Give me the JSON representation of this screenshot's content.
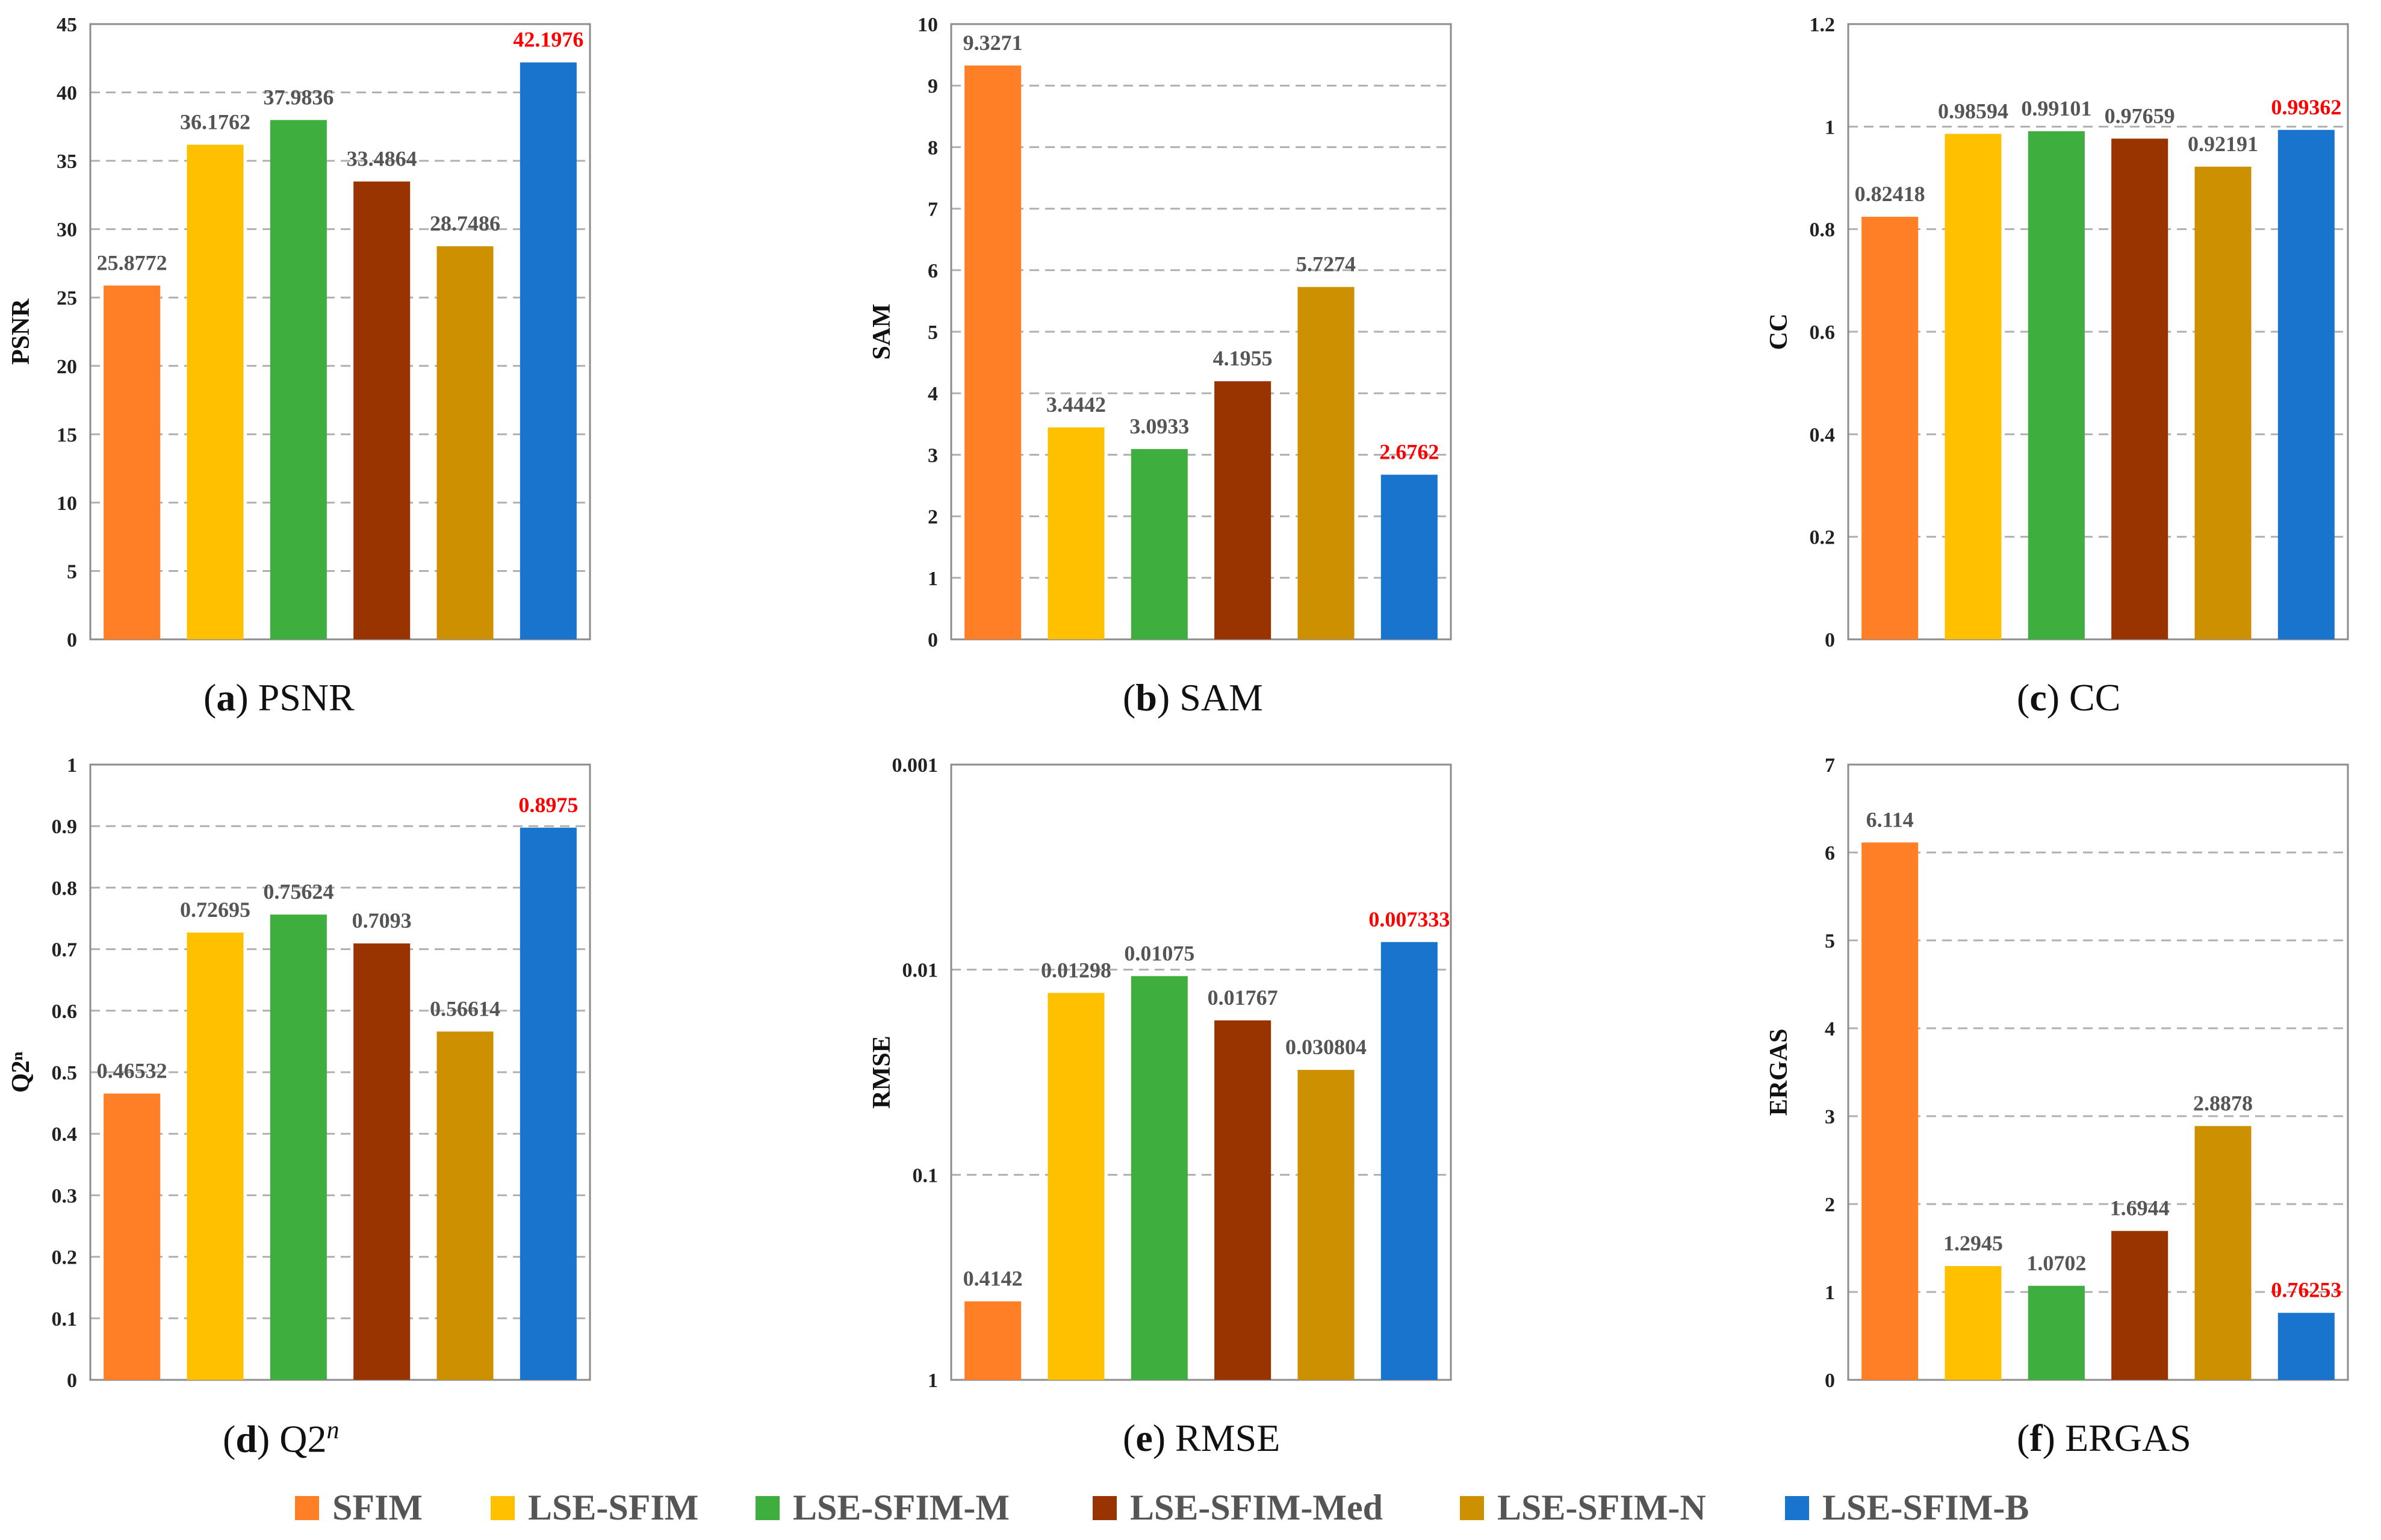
{
  "series_colors": {
    "SFIM": "#FF7F27",
    "LSE-SFIM": "#FFC000",
    "LSE-SFIM-M": "#3EAF3E",
    "LSE-SFIM-Med": "#993300",
    "LSE-SFIM-N": "#CC9000",
    "LSE-SFIM-B": "#1874CD"
  },
  "highlight_color": "#FF0000",
  "legend": [
    "SFIM",
    "LSE-SFIM",
    "LSE-SFIM-M",
    "LSE-SFIM-Med",
    "LSE-SFIM-N",
    "LSE-SFIM-B"
  ],
  "chart_data": [
    {
      "id": "a",
      "type": "bar",
      "title": "PSNR",
      "ylabel": "PSNR",
      "caption_letter": "a",
      "caption_text": "PSNR",
      "categories": [
        "SFIM",
        "LSE-SFIM",
        "LSE-SFIM-M",
        "LSE-SFIM-Med",
        "LSE-SFIM-N",
        "LSE-SFIM-B"
      ],
      "values": [
        25.8772,
        36.1762,
        37.9836,
        33.4864,
        28.7486,
        42.1976
      ],
      "labels": [
        "25.8772",
        "36.1762",
        "37.9836",
        "33.4864",
        "28.7486",
        "42.1976"
      ],
      "ylim": [
        0,
        45
      ],
      "ticks": [
        0,
        5,
        10,
        15,
        20,
        25,
        30,
        35,
        40,
        45
      ],
      "tick_labels": [
        "0",
        "5",
        "10",
        "15",
        "20",
        "25",
        "30",
        "35",
        "40",
        "45"
      ],
      "best_index": 5,
      "scale": "linear",
      "grid": true
    },
    {
      "id": "b",
      "type": "bar",
      "title": "SAM",
      "ylabel": "SAM",
      "caption_letter": "b",
      "caption_text": "SAM",
      "categories": [
        "SFIM",
        "LSE-SFIM",
        "LSE-SFIM-M",
        "LSE-SFIM-Med",
        "LSE-SFIM-N",
        "LSE-SFIM-B"
      ],
      "values": [
        9.3271,
        3.4442,
        3.0933,
        4.1955,
        5.7274,
        2.6762
      ],
      "labels": [
        "9.3271",
        "3.4442",
        "3.0933",
        "4.1955",
        "5.7274",
        "2.6762"
      ],
      "ylim": [
        0,
        10
      ],
      "ticks": [
        0,
        1,
        2,
        3,
        4,
        5,
        6,
        7,
        8,
        9,
        10
      ],
      "tick_labels": [
        "0",
        "1",
        "2",
        "3",
        "4",
        "5",
        "6",
        "7",
        "8",
        "9",
        "10"
      ],
      "best_index": 5,
      "scale": "linear",
      "grid": true
    },
    {
      "id": "c",
      "type": "bar",
      "title": "CC",
      "ylabel": "CC",
      "caption_letter": "c",
      "caption_text": "CC",
      "categories": [
        "SFIM",
        "LSE-SFIM",
        "LSE-SFIM-M",
        "LSE-SFIM-Med",
        "LSE-SFIM-N",
        "LSE-SFIM-B"
      ],
      "values": [
        0.82418,
        0.98594,
        0.99101,
        0.97659,
        0.92191,
        0.99362
      ],
      "labels": [
        "0.82418",
        "0.98594",
        "0.99101",
        "0.97659",
        "0.92191",
        "0.99362"
      ],
      "ylim": [
        0,
        1.2
      ],
      "ticks": [
        0,
        0.2,
        0.4,
        0.6,
        0.8,
        1,
        1.2
      ],
      "tick_labels": [
        "0",
        "0.2",
        "0.4",
        "0.6",
        "0.8",
        "1",
        "1.2"
      ],
      "best_index": 5,
      "scale": "linear",
      "grid": true
    },
    {
      "id": "d",
      "type": "bar",
      "title": "Q2n",
      "ylabel": "Q2ⁿ",
      "caption_letter": "d",
      "caption_text": "Q2",
      "caption_sup": "n",
      "categories": [
        "SFIM",
        "LSE-SFIM",
        "LSE-SFIM-M",
        "LSE-SFIM-Med",
        "LSE-SFIM-N",
        "LSE-SFIM-B"
      ],
      "values": [
        0.46532,
        0.72695,
        0.75624,
        0.7093,
        0.56614,
        0.8975
      ],
      "labels": [
        "0.46532",
        "0.72695",
        "0.75624",
        "0.7093",
        "0.56614",
        "0.8975"
      ],
      "ylim": [
        0,
        1
      ],
      "ticks": [
        0,
        0.1,
        0.2,
        0.3,
        0.4,
        0.5,
        0.6,
        0.7,
        0.8,
        0.9,
        1
      ],
      "tick_labels": [
        "0",
        "0.1",
        "0.2",
        "0.3",
        "0.4",
        "0.5",
        "0.6",
        "0.7",
        "0.8",
        "0.9",
        "1"
      ],
      "best_index": 5,
      "scale": "linear",
      "grid": true
    },
    {
      "id": "e",
      "type": "bar",
      "title": "RMSE",
      "ylabel": "RMSE",
      "caption_letter": "e",
      "caption_text": "RMSE",
      "categories": [
        "SFIM",
        "LSE-SFIM",
        "LSE-SFIM-M",
        "LSE-SFIM-Med",
        "LSE-SFIM-N",
        "LSE-SFIM-B"
      ],
      "values": [
        0.4142,
        0.01298,
        0.01075,
        0.01767,
        0.030804,
        0.007333
      ],
      "labels": [
        "0.4142",
        "0.01298",
        "0.01075",
        "0.01767",
        "0.030804",
        "0.007333"
      ],
      "ylim": [
        1,
        0.001
      ],
      "ticks": [
        1,
        0.1,
        0.01,
        0.001
      ],
      "tick_labels": [
        "1",
        "0.1",
        "0.01",
        "0.001"
      ],
      "best_index": 5,
      "scale": "log-reversed",
      "grid": true
    },
    {
      "id": "f",
      "type": "bar",
      "title": "ERGAS",
      "ylabel": "ERGAS",
      "caption_letter": "f",
      "caption_text": "ERGAS",
      "categories": [
        "SFIM",
        "LSE-SFIM",
        "LSE-SFIM-M",
        "LSE-SFIM-Med",
        "LSE-SFIM-N",
        "LSE-SFIM-B"
      ],
      "values": [
        6.114,
        1.2945,
        1.0702,
        1.6944,
        2.8878,
        0.76253
      ],
      "labels": [
        "6.114",
        "1.2945",
        "1.0702",
        "1.6944",
        "2.8878",
        "0.76253"
      ],
      "ylim": [
        0,
        7
      ],
      "ticks": [
        0,
        1,
        2,
        3,
        4,
        5,
        6,
        7
      ],
      "tick_labels": [
        "0",
        "1",
        "2",
        "3",
        "4",
        "5",
        "6",
        "7"
      ],
      "best_index": 5,
      "scale": "linear",
      "grid": true
    }
  ]
}
